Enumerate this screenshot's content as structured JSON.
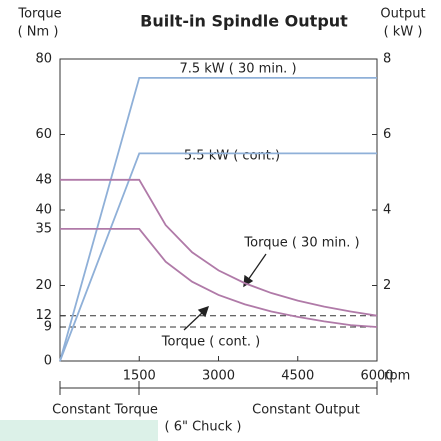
{
  "chart_data": {
    "type": "line",
    "title": "Built-in Spindle Output",
    "y_label": [
      "Torque",
      "( Nm )"
    ],
    "y2_label": [
      "Output",
      "( kW )"
    ],
    "x_label": "rpm",
    "xlim": [
      0,
      6000
    ],
    "xticks": [
      1500,
      3000,
      4500,
      6000
    ],
    "ylim": [
      0,
      80
    ],
    "yticks": [
      0,
      9,
      12,
      20,
      35,
      40,
      48,
      60,
      80
    ],
    "y2lim": [
      0,
      8
    ],
    "y2ticks": [
      2,
      4,
      6,
      8
    ],
    "reference_lines": [
      12,
      9
    ],
    "series": [
      {
        "name": "7.5 kW ( 30 min. )",
        "color": "#8fb0d8",
        "axis": "y2",
        "x": [
          0,
          1500,
          6000
        ],
        "values": [
          0,
          7.5,
          7.5
        ]
      },
      {
        "name": "5.5 kW ( cont.)",
        "color": "#8fb0d8",
        "axis": "y2",
        "x": [
          0,
          1500,
          6000
        ],
        "values": [
          0,
          5.5,
          5.5
        ]
      },
      {
        "name": "Torque ( 30 min. )",
        "color": "#b07aa8",
        "x": [
          0,
          1500,
          2000,
          2500,
          3000,
          3500,
          4000,
          4500,
          5000,
          5500,
          6000
        ],
        "values": [
          48,
          48,
          36,
          28.8,
          24,
          20.6,
          18,
          16,
          14.4,
          13.1,
          12
        ]
      },
      {
        "name": "Torque ( cont. )",
        "color": "#b07aa8",
        "x": [
          0,
          1500,
          2000,
          2500,
          3000,
          3500,
          4000,
          4500,
          5000,
          5500,
          6000
        ],
        "values": [
          35,
          35,
          26.3,
          21,
          17.5,
          15,
          13.1,
          11.7,
          10.5,
          9.5,
          9
        ]
      }
    ],
    "regions": [
      "Constant Torque",
      "Constant Output"
    ],
    "note": "( 6\" Chuck )"
  }
}
